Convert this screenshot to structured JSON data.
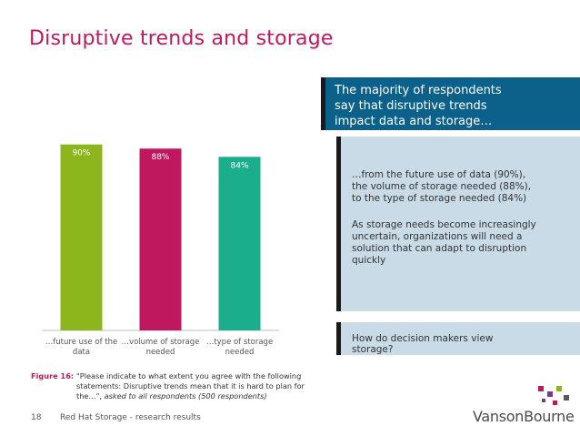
{
  "title": "Disruptive trends and storage",
  "chart_data": {
    "type": "bar",
    "categories": [
      "…future use of the data",
      "…volume of storage needed",
      "…type of storage needed"
    ],
    "category_lines": [
      [
        "…future use of the",
        "data"
      ],
      [
        "…volume of storage",
        "needed"
      ],
      [
        "…type of storage",
        "needed"
      ]
    ],
    "values": [
      90,
      88,
      84
    ],
    "data_labels": [
      "90%",
      "88%",
      "84%"
    ],
    "colors": [
      "#8db61c",
      "#c0185f",
      "#1aae8c"
    ],
    "ylim": [
      0,
      100
    ],
    "grid": false,
    "legend": "none"
  },
  "callout": {
    "headline": "The majority of respondents\nsay that disruptive trends\nimpact data and storage…"
  },
  "panel": {
    "para1": "…from the future use of data (90%),\nthe volume of storage needed (88%),\nto the type of storage needed (84%)",
    "para2": "As storage needs become increasingly\nuncertain, organizations will need a\nsolution that can adapt to disruption\nquickly"
  },
  "panel2": {
    "question": "How do decision makers view\nstorage?"
  },
  "caption": {
    "figure": "Figure 16:",
    "question": "\"Please indicate to what extent you agree with the following statements: Disruptive trends mean that it is hard to plan for the…\",",
    "base": " asked to all respondents (500 respondents)"
  },
  "footer": {
    "page_number": "18",
    "text": "Red Hat Storage - research results"
  },
  "logo": {
    "text": "VansonBourne",
    "colors": [
      "#c0185f",
      "#7a3a8a",
      "#8db61c",
      "#5a5a5a"
    ]
  }
}
